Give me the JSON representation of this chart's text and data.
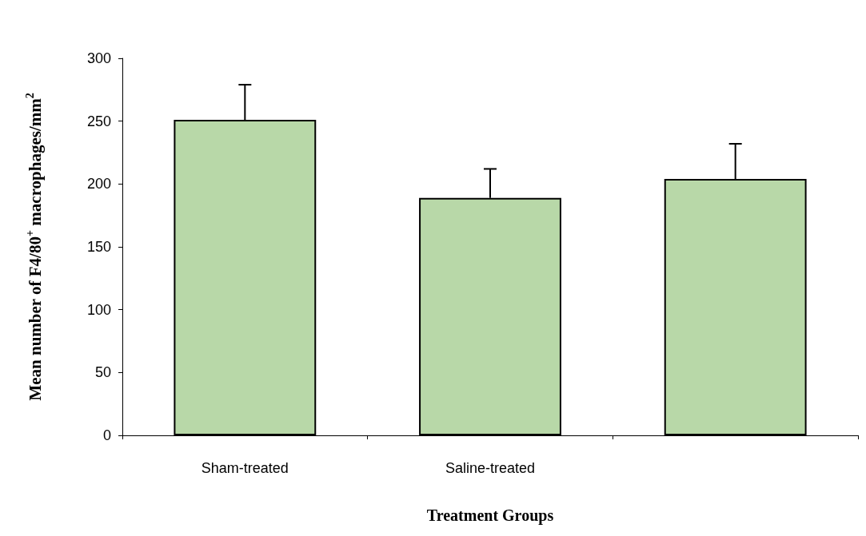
{
  "chart_data": {
    "type": "bar",
    "xlabel": "Treatment Groups",
    "ylabel": "Mean number of F4/80$^{+}$ macrophages/mm$^{2}$",
    "categories": [
      "Sham-treated",
      "Saline-treated",
      null
    ],
    "values": [
      251,
      189,
      204
    ],
    "errors": [
      [
        251,
        279
      ],
      [
        189,
        212
      ],
      [
        204,
        232
      ]
    ],
    "color": "#b8d8a8",
    "ylim": [
      0,
      300
    ],
    "yticks": [
      0,
      50,
      100,
      150,
      200,
      250,
      300
    ],
    "grid": false
  }
}
